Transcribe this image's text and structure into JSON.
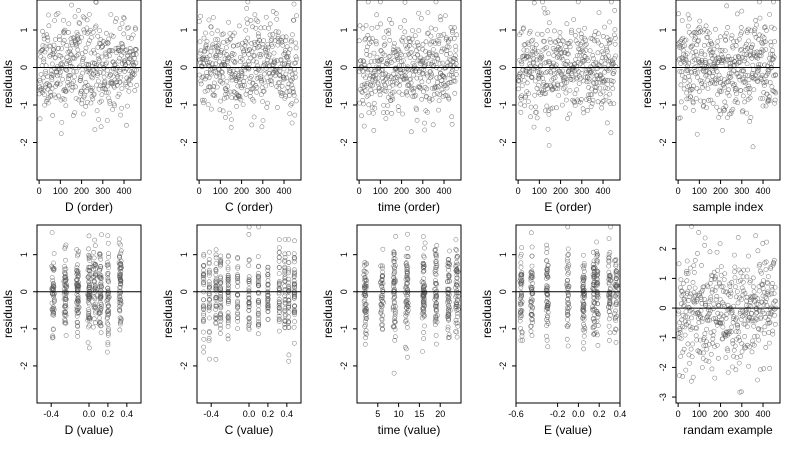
{
  "chart_data": [
    {
      "type": "scatter",
      "xlabel": "D (order)",
      "ylabel": "residuals",
      "xlim": [
        -10,
        480
      ],
      "ylim": [
        -3,
        1.8
      ],
      "xticks": [
        0,
        100,
        200,
        300,
        400
      ],
      "xtick_labels": [
        "0",
        "100",
        "200",
        "300",
        "400"
      ],
      "yticks": [
        -2,
        -1,
        0,
        1
      ],
      "ytick_labels": [
        "-2",
        "-1",
        "0",
        "1"
      ],
      "hline": 0,
      "n_points": 460,
      "gen": {
        "kind": "order",
        "seed": 11
      }
    },
    {
      "type": "scatter",
      "xlabel": "C (order)",
      "ylabel": "residuals",
      "xlim": [
        -10,
        480
      ],
      "ylim": [
        -3,
        1.8
      ],
      "xticks": [
        0,
        100,
        200,
        300,
        400
      ],
      "xtick_labels": [
        "0",
        "100",
        "200",
        "300",
        "400"
      ],
      "yticks": [
        -2,
        -1,
        0,
        1
      ],
      "ytick_labels": [
        "-2",
        "-1",
        "0",
        "1"
      ],
      "hline": 0,
      "n_points": 460,
      "gen": {
        "kind": "order",
        "seed": 23
      }
    },
    {
      "type": "scatter",
      "xlabel": "time (order)",
      "ylabel": "residuals",
      "xlim": [
        -10,
        480
      ],
      "ylim": [
        -3,
        1.8
      ],
      "xticks": [
        0,
        100,
        200,
        300,
        400
      ],
      "xtick_labels": [
        "0",
        "100",
        "200",
        "300",
        "400"
      ],
      "yticks": [
        -2,
        -1,
        0,
        1
      ],
      "ytick_labels": [
        "-2",
        "-1",
        "0",
        "1"
      ],
      "hline": 0,
      "n_points": 460,
      "gen": {
        "kind": "order",
        "seed": 37
      }
    },
    {
      "type": "scatter",
      "xlabel": "E (order)",
      "ylabel": "residuals",
      "xlim": [
        -10,
        480
      ],
      "ylim": [
        -3,
        1.8
      ],
      "xticks": [
        0,
        100,
        200,
        300,
        400
      ],
      "xtick_labels": [
        "0",
        "100",
        "200",
        "300",
        "400"
      ],
      "yticks": [
        -2,
        -1,
        0,
        1
      ],
      "ytick_labels": [
        "-2",
        "-1",
        "0",
        "1"
      ],
      "hline": 0,
      "n_points": 460,
      "gen": {
        "kind": "order",
        "seed": 41
      }
    },
    {
      "type": "scatter",
      "xlabel": "sample index",
      "ylabel": "residuals",
      "xlim": [
        -10,
        480
      ],
      "ylim": [
        -3,
        1.8
      ],
      "xticks": [
        0,
        100,
        200,
        300,
        400
      ],
      "xtick_labels": [
        "0",
        "100",
        "200",
        "300",
        "400"
      ],
      "yticks": [
        -2,
        -1,
        0,
        1
      ],
      "ytick_labels": [
        "-2",
        "-1",
        "0",
        "1"
      ],
      "hline": 0,
      "n_points": 460,
      "gen": {
        "kind": "order",
        "seed": 53
      }
    },
    {
      "type": "scatter",
      "xlabel": "D (value)",
      "ylabel": "residuals",
      "xlim": [
        -0.55,
        0.55
      ],
      "ylim": [
        -3,
        1.8
      ],
      "xticks": [
        -0.4,
        0,
        0.2,
        0.4
      ],
      "xtick_labels": [
        "-0.4",
        "0.0",
        "0.2",
        "0.4"
      ],
      "yticks": [
        -2,
        -1,
        0,
        1
      ],
      "ytick_labels": [
        "-2",
        "-1",
        "0",
        "1"
      ],
      "hline": 0,
      "n_points": 460,
      "gen": {
        "kind": "value",
        "seed": 61,
        "spread": 0.5,
        "clusters": [
          -0.38,
          -0.25,
          -0.12,
          0.0,
          0.06,
          0.12,
          0.2,
          0.33
        ]
      }
    },
    {
      "type": "scatter",
      "xlabel": "C (value)",
      "ylabel": "residuals",
      "xlim": [
        -0.55,
        0.55
      ],
      "ylim": [
        -3,
        1.8
      ],
      "xticks": [
        -0.4,
        0,
        0.2,
        0.4
      ],
      "xtick_labels": [
        "-0.4",
        "0.0",
        "0.2",
        "0.4"
      ],
      "yticks": [
        -2,
        -1,
        0,
        1
      ],
      "ytick_labels": [
        "-2",
        "-1",
        "0",
        "1"
      ],
      "hline": 0,
      "n_points": 460,
      "gen": {
        "kind": "value",
        "seed": 71,
        "spread": 0.0,
        "clusters": [
          -0.48,
          -0.42,
          -0.35,
          -0.3,
          -0.22,
          -0.12,
          0.0,
          0.1,
          0.2,
          0.32,
          0.38,
          0.42,
          0.48
        ]
      }
    },
    {
      "type": "scatter",
      "xlabel": "time (value)",
      "ylabel": "residuals",
      "xlim": [
        0,
        25
      ],
      "ylim": [
        -3,
        1.8
      ],
      "xticks": [
        5,
        10,
        15,
        20
      ],
      "xtick_labels": [
        "5",
        "10",
        "15",
        "20"
      ],
      "yticks": [
        -2,
        -1,
        0,
        1
      ],
      "ytick_labels": [
        "-2",
        "-1",
        "0",
        "1"
      ],
      "hline": 0,
      "n_points": 460,
      "gen": {
        "kind": "value",
        "seed": 83,
        "spread": 0.6,
        "clusters": [
          2,
          6,
          9,
          12,
          16,
          19,
          22,
          24
        ]
      }
    },
    {
      "type": "scatter",
      "xlabel": "E (value)",
      "ylabel": "residuals",
      "xlim": [
        -0.6,
        0.4
      ],
      "ylim": [
        -3,
        1.8
      ],
      "xticks": [
        -0.6,
        -0.2,
        0,
        0.2,
        0.4
      ],
      "xtick_labels": [
        "-0.6",
        "-0.2",
        "0.0",
        "0.2",
        "0.4"
      ],
      "yticks": [
        -2,
        -1,
        0,
        1
      ],
      "ytick_labels": [
        "-2",
        "-1",
        "0",
        "1"
      ],
      "hline": 0,
      "n_points": 460,
      "gen": {
        "kind": "value",
        "seed": 97,
        "spread": 0.45,
        "clusters": [
          -0.55,
          -0.45,
          -0.3,
          -0.1,
          0.05,
          0.15,
          0.18,
          0.3,
          0.36
        ]
      }
    },
    {
      "type": "scatter",
      "xlabel": "randam example",
      "ylabel": "",
      "xlim": [
        -10,
        480
      ],
      "ylim": [
        -3.2,
        2.8
      ],
      "xticks": [
        0,
        100,
        200,
        300,
        400
      ],
      "xtick_labels": [
        "0",
        "100",
        "200",
        "300",
        "400"
      ],
      "yticks": [
        -3,
        -2,
        -1,
        0,
        1,
        2
      ],
      "ytick_labels": [
        "-3",
        "-2",
        "-1",
        "0",
        "1",
        "2"
      ],
      "hline": 0,
      "n_points": 460,
      "gen": {
        "kind": "order",
        "seed": 107,
        "sd": 1.0
      }
    }
  ]
}
